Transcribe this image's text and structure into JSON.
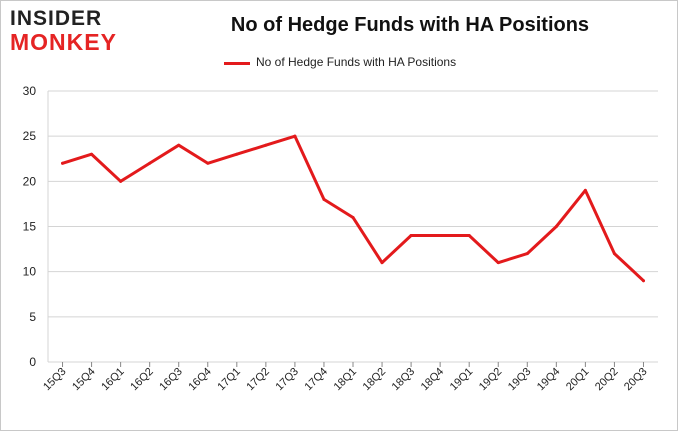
{
  "logo": {
    "top": "INSIDER",
    "bottom": "MONKEY"
  },
  "colors": {
    "series": "#e31a1c",
    "grid": "#d4d4d4",
    "logo_red": "#e52424"
  },
  "chart_data": {
    "type": "line",
    "title": "No of Hedge Funds with HA Positions",
    "legend": "top-center",
    "grid": true,
    "ylim": [
      0,
      30
    ],
    "yticks": [
      "0",
      "5",
      "10",
      "15",
      "20",
      "25",
      "30"
    ],
    "categories": [
      "15Q3",
      "15Q4",
      "16Q1",
      "16Q2",
      "16Q3",
      "16Q4",
      "17Q1",
      "17Q2",
      "17Q3",
      "17Q4",
      "18Q1",
      "18Q2",
      "18Q3",
      "18Q4",
      "19Q1",
      "19Q2",
      "19Q3",
      "19Q4",
      "20Q1",
      "20Q2",
      "20Q3"
    ],
    "series": [
      {
        "name": "No of Hedge Funds with HA Positions",
        "values": [
          22,
          23,
          20,
          22,
          24,
          22,
          23,
          24,
          25,
          18,
          16,
          11,
          14,
          14,
          14,
          11,
          12,
          15,
          19,
          12,
          9
        ]
      }
    ]
  }
}
